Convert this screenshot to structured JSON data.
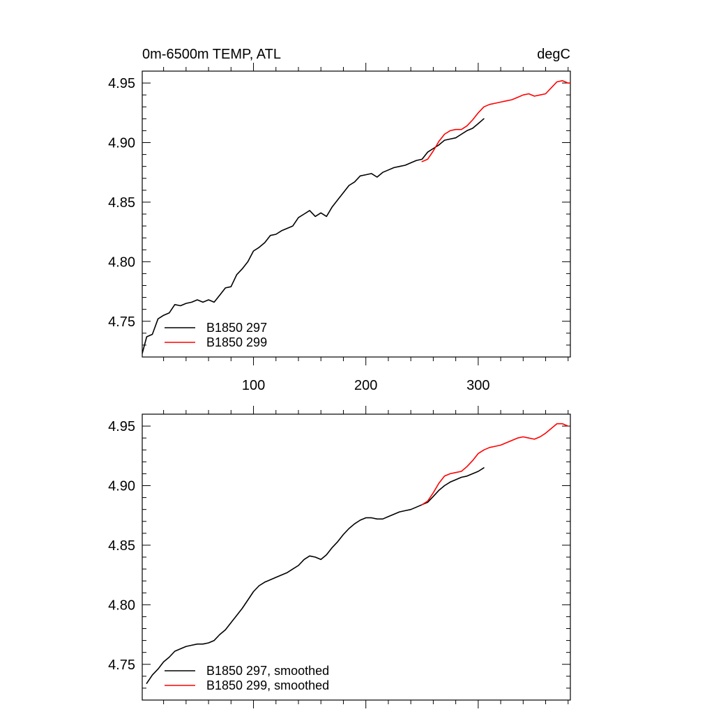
{
  "colors": {
    "series_297": "#000000",
    "series_299": "#ff0000"
  },
  "header": {
    "left_title": "0m-6500m TEMP, ATL",
    "right_title": "degC"
  },
  "chart_data": [
    {
      "type": "line",
      "title": "",
      "xlabel": "",
      "ylabel": "",
      "xlim": [
        1,
        382
      ],
      "ylim": [
        4.72,
        4.96
      ],
      "xticks": [
        100,
        200,
        300
      ],
      "xtick_labels": [
        "100",
        "200",
        "300"
      ],
      "yticks": [
        4.75,
        4.8,
        4.85,
        4.9,
        4.95
      ],
      "ytick_labels": [
        "4.75",
        "4.80",
        "4.85",
        "4.90",
        "4.95"
      ],
      "legend": {
        "placement": "bottom-left",
        "entries": [
          "B1850 297",
          "B1850 299"
        ]
      },
      "series": [
        {
          "name": "B1850 297",
          "color": "#000000",
          "x": [
            1,
            5,
            10,
            15,
            20,
            25,
            30,
            35,
            40,
            45,
            50,
            55,
            60,
            65,
            70,
            75,
            80,
            85,
            90,
            95,
            100,
            105,
            110,
            115,
            120,
            125,
            130,
            135,
            140,
            145,
            150,
            155,
            160,
            165,
            170,
            175,
            180,
            185,
            190,
            195,
            200,
            205,
            210,
            215,
            220,
            225,
            230,
            235,
            240,
            245,
            250,
            255,
            260,
            265,
            270,
            275,
            280,
            285,
            290,
            295,
            300,
            305
          ],
          "y": [
            4.723,
            4.737,
            4.739,
            4.752,
            4.755,
            4.757,
            4.764,
            4.763,
            4.765,
            4.766,
            4.768,
            4.766,
            4.768,
            4.766,
            4.772,
            4.778,
            4.779,
            4.789,
            4.794,
            4.8,
            4.809,
            4.812,
            4.816,
            4.822,
            4.823,
            4.826,
            4.828,
            4.83,
            4.837,
            4.84,
            4.843,
            4.838,
            4.841,
            4.838,
            4.846,
            4.852,
            4.858,
            4.864,
            4.867,
            4.872,
            4.873,
            4.874,
            4.871,
            4.875,
            4.877,
            4.879,
            4.88,
            4.881,
            4.883,
            4.885,
            4.886,
            4.892,
            4.895,
            4.898,
            4.902,
            4.903,
            4.904,
            4.907,
            4.91,
            4.912,
            4.916,
            4.92
          ]
        },
        {
          "name": "B1850 299",
          "color": "#ff0000",
          "x": [
            250,
            255,
            260,
            265,
            270,
            275,
            280,
            285,
            290,
            295,
            300,
            305,
            310,
            315,
            320,
            325,
            330,
            335,
            340,
            345,
            350,
            355,
            360,
            365,
            370,
            375,
            380,
            382
          ],
          "y": [
            4.884,
            4.886,
            4.893,
            4.901,
            4.907,
            4.91,
            4.911,
            4.911,
            4.914,
            4.919,
            4.925,
            4.93,
            4.932,
            4.933,
            4.934,
            4.935,
            4.936,
            4.938,
            4.94,
            4.941,
            4.939,
            4.94,
            4.941,
            4.946,
            4.951,
            4.952,
            4.95,
            4.95
          ]
        }
      ]
    },
    {
      "type": "line",
      "title": "",
      "xlabel": "",
      "ylabel": "",
      "xlim": [
        1,
        382
      ],
      "ylim": [
        4.72,
        4.96
      ],
      "xticks": [
        100,
        200,
        300
      ],
      "yticks": [
        4.75,
        4.8,
        4.85,
        4.9,
        4.95
      ],
      "ytick_labels": [
        "4.75",
        "4.80",
        "4.85",
        "4.90",
        "4.95"
      ],
      "legend": {
        "placement": "bottom-left",
        "entries": [
          "B1850 297, smoothed",
          "B1850 299, smoothed"
        ]
      },
      "series": [
        {
          "name": "B1850 297, smoothed",
          "color": "#000000",
          "x": [
            5,
            10,
            15,
            20,
            25,
            30,
            35,
            40,
            45,
            50,
            55,
            60,
            65,
            70,
            75,
            80,
            85,
            90,
            95,
            100,
            105,
            110,
            115,
            120,
            125,
            130,
            135,
            140,
            145,
            150,
            155,
            160,
            165,
            170,
            175,
            180,
            185,
            190,
            195,
            200,
            205,
            210,
            215,
            220,
            225,
            230,
            235,
            240,
            245,
            250,
            255,
            260,
            265,
            270,
            275,
            280,
            285,
            290,
            295,
            300,
            305
          ],
          "y": [
            4.734,
            4.741,
            4.746,
            4.752,
            4.756,
            4.761,
            4.763,
            4.765,
            4.766,
            4.767,
            4.767,
            4.768,
            4.77,
            4.775,
            4.779,
            4.785,
            4.791,
            4.797,
            4.804,
            4.811,
            4.816,
            4.819,
            4.821,
            4.823,
            4.825,
            4.827,
            4.83,
            4.833,
            4.838,
            4.841,
            4.84,
            4.838,
            4.842,
            4.848,
            4.853,
            4.859,
            4.864,
            4.868,
            4.871,
            4.873,
            4.873,
            4.872,
            4.872,
            4.874,
            4.876,
            4.878,
            4.879,
            4.88,
            4.882,
            4.884,
            4.886,
            4.891,
            4.896,
            4.9,
            4.903,
            4.905,
            4.907,
            4.908,
            4.91,
            4.912,
            4.915
          ]
        },
        {
          "name": "B1850 299, smoothed",
          "color": "#ff0000",
          "x": [
            250,
            255,
            260,
            265,
            270,
            275,
            280,
            285,
            290,
            295,
            300,
            305,
            310,
            315,
            320,
            325,
            330,
            335,
            340,
            345,
            350,
            355,
            360,
            365,
            370,
            375,
            380
          ],
          "y": [
            4.884,
            4.887,
            4.894,
            4.902,
            4.908,
            4.91,
            4.911,
            4.912,
            4.916,
            4.921,
            4.927,
            4.93,
            4.932,
            4.933,
            4.934,
            4.936,
            4.938,
            4.94,
            4.941,
            4.94,
            4.939,
            4.941,
            4.944,
            4.948,
            4.952,
            4.952,
            4.95
          ]
        }
      ]
    }
  ]
}
